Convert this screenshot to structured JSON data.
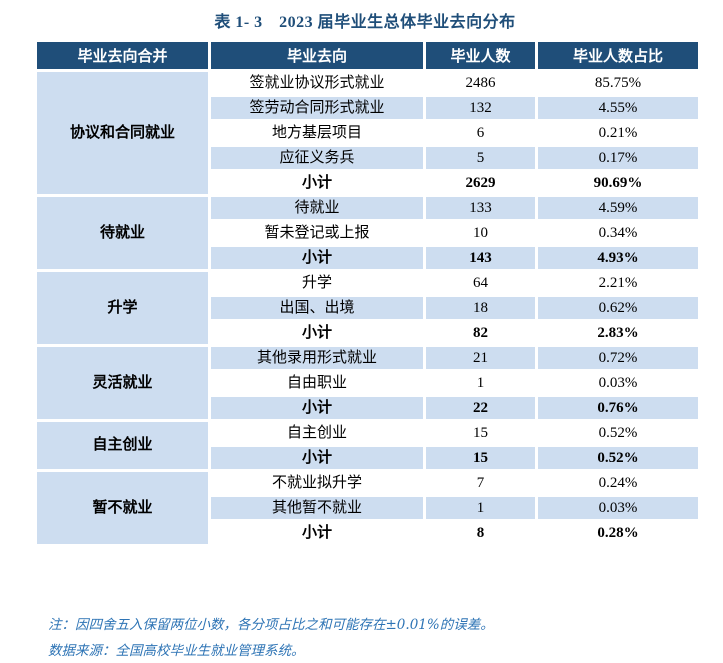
{
  "title": "表 1- 3　2023 届毕业生总体毕业去向分布",
  "colors": {
    "header_bg": "#1F4E79",
    "band_bg": "#CDDDF0",
    "title_color": "#1F4E79",
    "note_color": "#2E74B5"
  },
  "table": {
    "headers": [
      "毕业去向合并",
      "毕业去向",
      "毕业人数",
      "毕业人数占比"
    ],
    "groups": [
      {
        "label": "协议和合同就业",
        "rows": [
          {
            "dest": "签就业协议形式就业",
            "count": "2486",
            "pct": "85.75%"
          },
          {
            "dest": "签劳动合同形式就业",
            "count": "132",
            "pct": "4.55%"
          },
          {
            "dest": "地方基层项目",
            "count": "6",
            "pct": "0.21%"
          },
          {
            "dest": "应征义务兵",
            "count": "5",
            "pct": "0.17%"
          },
          {
            "dest": "小计",
            "count": "2629",
            "pct": "90.69%"
          }
        ]
      },
      {
        "label": "待就业",
        "rows": [
          {
            "dest": "待就业",
            "count": "133",
            "pct": "4.59%"
          },
          {
            "dest": "暂未登记或上报",
            "count": "10",
            "pct": "0.34%"
          },
          {
            "dest": "小计",
            "count": "143",
            "pct": "4.93%"
          }
        ]
      },
      {
        "label": "升学",
        "rows": [
          {
            "dest": "升学",
            "count": "64",
            "pct": "2.21%"
          },
          {
            "dest": "出国、出境",
            "count": "18",
            "pct": "0.62%"
          },
          {
            "dest": "小计",
            "count": "82",
            "pct": "2.83%"
          }
        ]
      },
      {
        "label": "灵活就业",
        "rows": [
          {
            "dest": "其他录用形式就业",
            "count": "21",
            "pct": "0.72%"
          },
          {
            "dest": "自由职业",
            "count": "1",
            "pct": "0.03%"
          },
          {
            "dest": "小计",
            "count": "22",
            "pct": "0.76%"
          }
        ]
      },
      {
        "label": "自主创业",
        "rows": [
          {
            "dest": "自主创业",
            "count": "15",
            "pct": "0.52%"
          },
          {
            "dest": "小计",
            "count": "15",
            "pct": "0.52%"
          }
        ]
      },
      {
        "label": "暂不就业",
        "rows": [
          {
            "dest": "不就业拟升学",
            "count": "7",
            "pct": "0.24%"
          },
          {
            "dest": "其他暂不就业",
            "count": "1",
            "pct": "0.03%"
          },
          {
            "dest": "小计",
            "count": "8",
            "pct": "0.28%"
          }
        ]
      }
    ]
  },
  "notes": {
    "rounding": "注：因四舍五入保留两位小数，各分项占比之和可能存在±0.01%的误差。",
    "source": "数据来源：全国高校毕业生就业管理系统。"
  }
}
